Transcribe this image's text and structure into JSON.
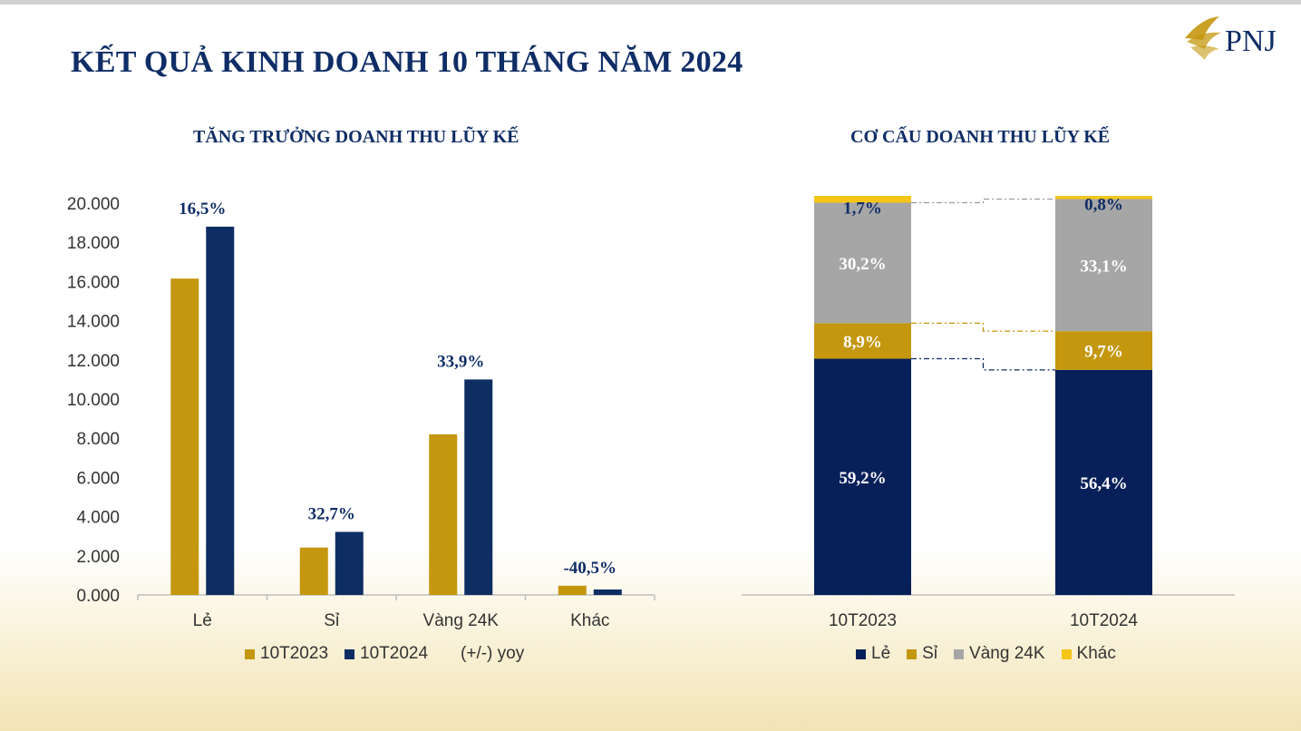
{
  "title": "KẾT QUẢ KINH DOANH 10 THÁNG NĂM 2024",
  "logo": {
    "text": "PNJ",
    "icon": "pnj-logo-icon"
  },
  "colors": {
    "gold": "#c4970e",
    "navy": "#0d2d63",
    "gray": "#a6a6a6",
    "yellow": "#f5c518",
    "darknavy": "#08205a",
    "titleBlue": "#0f2d66"
  },
  "chart_data": [
    {
      "type": "bar",
      "title": "TĂNG TRƯỞNG DOANH THU LŨY KẾ",
      "categories": [
        "Lẻ",
        "Sỉ",
        "Vàng 24K",
        "Khác"
      ],
      "series": [
        {
          "name": "10T2023",
          "values": [
            16150,
            2420,
            8200,
            470
          ]
        },
        {
          "name": "10T2024",
          "values": [
            18800,
            3220,
            11000,
            280
          ]
        }
      ],
      "yoy_labels": [
        "16,5%",
        "32,7%",
        "33,9%",
        "-40,5%"
      ],
      "yoy_legend": "(+/-) yoy",
      "ylim": [
        0,
        20000
      ],
      "yticks": [
        "0.000",
        "2.000",
        "4.000",
        "6.000",
        "8.000",
        "10.000",
        "12.000",
        "14.000",
        "16.000",
        "18.000",
        "20.000"
      ],
      "ytick_values": [
        0,
        2000,
        4000,
        6000,
        8000,
        10000,
        12000,
        14000,
        16000,
        18000,
        20000
      ],
      "legend_position": "bottom",
      "xlabel": "",
      "ylabel": ""
    },
    {
      "type": "bar",
      "stacked": true,
      "percent": true,
      "title": "CƠ CẤU DOANH THU LŨY KẾ",
      "categories": [
        "10T2023",
        "10T2024"
      ],
      "series": [
        {
          "name": "Lẻ",
          "values": [
            59.2,
            56.4
          ],
          "labels": [
            "59,2%",
            "56,4%"
          ]
        },
        {
          "name": "Sỉ",
          "values": [
            8.9,
            9.7
          ],
          "labels": [
            "8,9%",
            "9,7%"
          ]
        },
        {
          "name": "Vàng 24K",
          "values": [
            30.2,
            33.1
          ],
          "labels": [
            "30,2%",
            "33,1%"
          ]
        },
        {
          "name": "Khác",
          "values": [
            1.7,
            0.8
          ],
          "labels": [
            "1,7%",
            "0,8%"
          ]
        }
      ],
      "ylim": [
        0,
        100
      ],
      "legend_position": "bottom"
    }
  ]
}
